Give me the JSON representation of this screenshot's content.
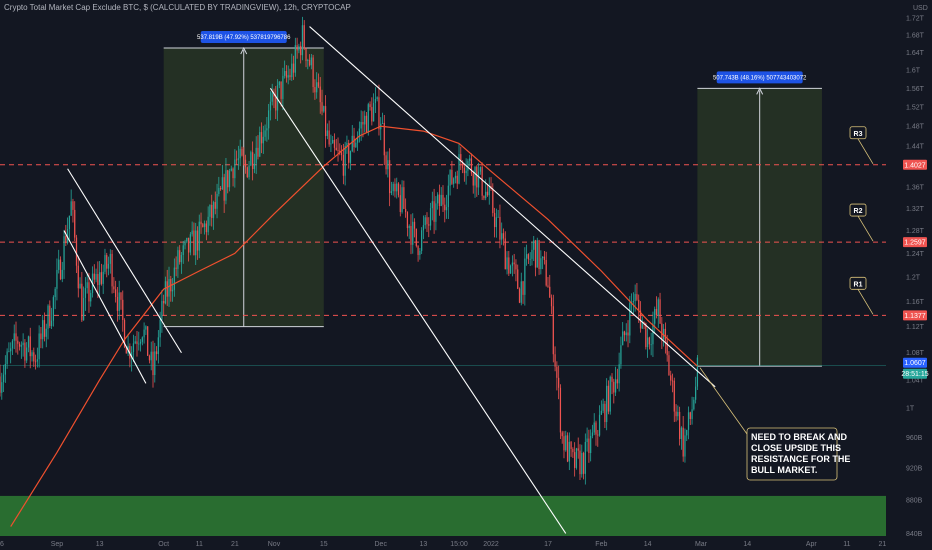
{
  "header": {
    "title": "Crypto Total Market Cap Exclude BTC, $ (CALCULATED BY TRADINGVIEW), 12h, CRYPTOCAP"
  },
  "colors": {
    "background": "#131722",
    "candle_up": "#26a69a",
    "candle_down": "#ef5350",
    "moving_average": "#f0502e",
    "resistance": "#ef5350",
    "trend_line": "#ffffff",
    "support_zone": "#2e7d32",
    "measure_box": "#2b3a26",
    "measure_label": "#1e53e5"
  },
  "chart_data": {
    "type": "candlestick",
    "title": "Crypto Total Market Cap Exclude BTC, $ (CALCULATED BY TRADINGVIEW), 12h, CRYPTOCAP",
    "y_unit": "USD",
    "y_scale": "log",
    "ylim": [
      837000000000,
      1730000000000
    ],
    "y_ticks": [
      "1.72T",
      "1.68T",
      "1.64T",
      "1.6T",
      "1.56T",
      "1.52T",
      "1.48T",
      "1.44T",
      "1.4T",
      "1.36T",
      "1.32T",
      "1.28T",
      "1.24T",
      "1.2T",
      "1.16T",
      "1.12T",
      "1.08T",
      "1.04T",
      "1T",
      "960B",
      "920B",
      "880B",
      "840B"
    ],
    "y_tick_values": [
      1720000000000,
      1680000000000,
      1640000000000,
      1600000000000,
      1560000000000,
      1520000000000,
      1480000000000,
      1440000000000,
      1400000000000,
      1360000000000,
      1320000000000,
      1280000000000,
      1240000000000,
      1200000000000,
      1160000000000,
      1120000000000,
      1080000000000,
      1040000000000,
      1000000000000,
      960000000000,
      920000000000,
      880000000000,
      840000000000
    ],
    "x_ticks": [
      "16",
      "Sep",
      "13",
      "Oct",
      "11",
      "21",
      "Nov",
      "15",
      "Dec",
      "13",
      "15:00",
      "2022",
      "17",
      "Feb",
      "14",
      "Mar",
      "14",
      "Apr",
      "11",
      "21"
    ],
    "x_tick_dates": [
      "2021-08-16",
      "2021-09-01",
      "2021-09-13",
      "2021-10-01",
      "2021-10-11",
      "2021-10-21",
      "2021-11-01",
      "2021-11-15",
      "2021-12-01",
      "2021-12-13",
      "2021-12-23",
      "2022-01-01",
      "2022-01-17",
      "2022-02-01",
      "2022-02-14",
      "2022-03-01",
      "2022-03-14",
      "2022-04-01",
      "2022-04-11",
      "2022-04-21"
    ],
    "x_range": [
      "2021-08-16",
      "2022-04-22"
    ],
    "anchors": [
      [
        "2021-08-16",
        1045000000000
      ],
      [
        "2021-08-21",
        1100000000000
      ],
      [
        "2021-08-26",
        1075000000000
      ],
      [
        "2021-08-31",
        1160000000000
      ],
      [
        "2021-09-05",
        1325000000000
      ],
      [
        "2021-09-08",
        1150000000000
      ],
      [
        "2021-09-11",
        1185000000000
      ],
      [
        "2021-09-16",
        1225000000000
      ],
      [
        "2021-09-21",
        1085000000000
      ],
      [
        "2021-09-25",
        1120000000000
      ],
      [
        "2021-09-28",
        1050000000000
      ],
      [
        "2021-10-01",
        1160000000000
      ],
      [
        "2021-10-05",
        1225000000000
      ],
      [
        "2021-10-11",
        1270000000000
      ],
      [
        "2021-10-16",
        1325000000000
      ],
      [
        "2021-10-21",
        1415000000000
      ],
      [
        "2021-10-24",
        1395000000000
      ],
      [
        "2021-10-29",
        1475000000000
      ],
      [
        "2021-11-02",
        1545000000000
      ],
      [
        "2021-11-06",
        1600000000000
      ],
      [
        "2021-11-09",
        1675000000000
      ],
      [
        "2021-11-12",
        1590000000000
      ],
      [
        "2021-11-17",
        1425000000000
      ],
      [
        "2021-11-21",
        1410000000000
      ],
      [
        "2021-11-25",
        1475000000000
      ],
      [
        "2021-11-29",
        1520000000000
      ],
      [
        "2021-12-01",
        1500000000000
      ],
      [
        "2021-12-04",
        1345000000000
      ],
      [
        "2021-12-07",
        1330000000000
      ],
      [
        "2021-12-11",
        1255000000000
      ],
      [
        "2021-12-15",
        1300000000000
      ],
      [
        "2021-12-19",
        1345000000000
      ],
      [
        "2021-12-24",
        1420000000000
      ],
      [
        "2021-12-28",
        1385000000000
      ],
      [
        "2022-01-01",
        1330000000000
      ],
      [
        "2022-01-05",
        1240000000000
      ],
      [
        "2022-01-09",
        1180000000000
      ],
      [
        "2022-01-13",
        1250000000000
      ],
      [
        "2022-01-17",
        1195000000000
      ],
      [
        "2022-01-21",
        960000000000
      ],
      [
        "2022-01-24",
        925000000000
      ],
      [
        "2022-01-27",
        930000000000
      ],
      [
        "2022-01-31",
        975000000000
      ],
      [
        "2022-02-05",
        1045000000000
      ],
      [
        "2022-02-10",
        1170000000000
      ],
      [
        "2022-02-14",
        1100000000000
      ],
      [
        "2022-02-17",
        1145000000000
      ],
      [
        "2022-02-21",
        1025000000000
      ],
      [
        "2022-02-24",
        950000000000
      ],
      [
        "2022-02-26",
        985000000000
      ],
      [
        "2022-02-28",
        1050000000000
      ]
    ],
    "moving_average_points": [
      [
        "2021-08-19",
        848000000000
      ],
      [
        "2021-09-01",
        940000000000
      ],
      [
        "2021-09-13",
        1040000000000
      ],
      [
        "2021-09-20",
        1100000000000
      ],
      [
        "2021-10-01",
        1180000000000
      ],
      [
        "2021-10-11",
        1210000000000
      ],
      [
        "2021-10-21",
        1240000000000
      ],
      [
        "2021-11-01",
        1310000000000
      ],
      [
        "2021-11-15",
        1400000000000
      ],
      [
        "2021-11-25",
        1460000000000
      ],
      [
        "2021-12-01",
        1480000000000
      ],
      [
        "2021-12-13",
        1470000000000
      ],
      [
        "2021-12-23",
        1445000000000
      ],
      [
        "2022-01-01",
        1390000000000
      ],
      [
        "2022-01-17",
        1300000000000
      ],
      [
        "2022-02-01",
        1210000000000
      ],
      [
        "2022-02-14",
        1130000000000
      ],
      [
        "2022-02-28",
        1060000000000
      ]
    ],
    "resistance_levels": [
      {
        "name": "R3",
        "value": 1402700000000,
        "label": "1.4027"
      },
      {
        "name": "R2",
        "value": 1259700000000,
        "label": "1.2597"
      },
      {
        "name": "R1",
        "value": 1137700000000,
        "label": "1.1377"
      }
    ],
    "last_price": {
      "value": 1060700000000,
      "label": "1.0607",
      "countdown": "28:51:15"
    },
    "trend_lines": [
      {
        "from": [
          "2021-11-11",
          1700000000000
        ],
        "to": [
          "2022-03-05",
          1030000000000
        ]
      },
      {
        "from": [
          "2021-10-31",
          1560000000000
        ],
        "to": [
          "2022-01-22",
          840000000000
        ]
      },
      {
        "from": [
          "2021-09-04",
          1395000000000
        ],
        "to": [
          "2021-10-06",
          1080000000000
        ]
      },
      {
        "from": [
          "2021-09-03",
          1280000000000
        ],
        "to": [
          "2021-09-26",
          1035000000000
        ]
      }
    ],
    "support_zone": {
      "from": 837000000000,
      "to": 885000000000
    },
    "measurements": [
      {
        "label": "537.819B (47.92%) 537819796786",
        "x_start": "2021-10-01",
        "x_end": "2021-11-15",
        "y_low": 1120000000000,
        "y_high": 1650000000000
      },
      {
        "label": "507.743B (48.16%) 507743403072",
        "x_start": "2022-02-28",
        "x_end": "2022-04-04",
        "y_low": 1060000000000,
        "y_high": 1560000000000
      }
    ],
    "annotation": "NEED TO BREAK AND CLOSE UPSIDE THIS RESISTANCE FOR THE BULL MARKET.",
    "annotation_lines": [
      "NEED TO BREAK AND",
      "CLOSE UPSIDE THIS",
      "RESISTANCE FOR THE",
      "BULL MARKET."
    ]
  }
}
